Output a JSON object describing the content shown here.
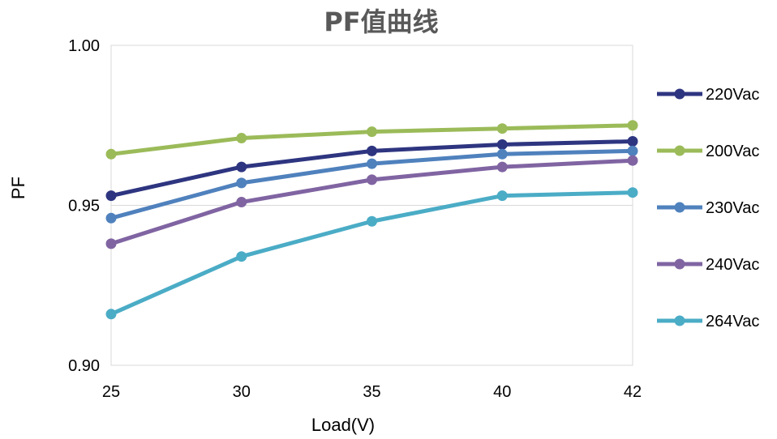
{
  "chart_data": {
    "type": "line",
    "title": "PF值曲线",
    "xlabel": "Load(V)",
    "ylabel": "PF",
    "categories": [
      "25",
      "30",
      "35",
      "40",
      "42"
    ],
    "ylim": [
      0.9,
      1.0
    ],
    "yticks": [
      "0.90",
      "0.95",
      "1.00"
    ],
    "grid": true,
    "legend_position": "right",
    "series": [
      {
        "name": "220Vac",
        "color": "#2E3580",
        "values": [
          0.953,
          0.962,
          0.967,
          0.969,
          0.97
        ]
      },
      {
        "name": "200Vac",
        "color": "#9BBB59",
        "values": [
          0.966,
          0.971,
          0.973,
          0.974,
          0.975
        ]
      },
      {
        "name": "230Vac",
        "color": "#4F81BD",
        "values": [
          0.946,
          0.957,
          0.963,
          0.966,
          0.967
        ]
      },
      {
        "name": "240Vac",
        "color": "#8064A2",
        "values": [
          0.938,
          0.951,
          0.958,
          0.962,
          0.964
        ]
      },
      {
        "name": "264Vac",
        "color": "#4BACC6",
        "values": [
          0.916,
          0.934,
          0.945,
          0.953,
          0.954
        ]
      }
    ]
  }
}
